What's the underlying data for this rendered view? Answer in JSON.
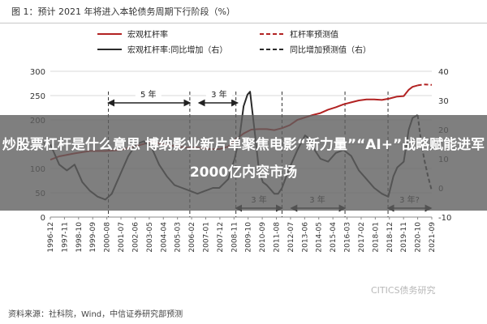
{
  "figure_title": "图 1：预计 2021 年将进入本轮债务周期下行阶段（%）",
  "source_note": "资料来源：社科院，Wind，中信证券研究部预测",
  "watermark": "CITICS债务研究",
  "overlay_title": "炒股票杠杆是什么意思 博纳影业新片单聚焦电影“新力量”“AI+”战略赋能进军2000亿内容市场",
  "colors": {
    "leverage": "#b22222",
    "yoy": "#2b2b2b",
    "grid": "#d9d9d9",
    "overlay": "#5f5f5f"
  },
  "chart_data": {
    "type": "line",
    "title": "图 1：预计 2021 年将进入本轮债务周期下行阶段（%）",
    "legend": [
      "宏观杠杆率",
      "杠杆率预测值",
      "宏观杠杆率:同比增加（右）",
      "同比增加预测值（右）"
    ],
    "legend_placement": "top",
    "grid": true,
    "y_left": {
      "ticks": [
        0,
        50,
        100,
        150,
        200,
        250,
        300
      ],
      "lim": [
        0,
        300
      ]
    },
    "y_right": {
      "ticks": [
        -10,
        0,
        10,
        20,
        30,
        40
      ],
      "lim": [
        -10,
        40
      ]
    },
    "x_tick_labels": [
      "1996-12",
      "1997-11",
      "1998-10",
      "1999-09",
      "2000-08",
      "2001-07",
      "2002-06",
      "2003-05",
      "2004-04",
      "2005-03",
      "2006-02",
      "2007-01",
      "2007-12",
      "2008-11",
      "2009-10",
      "2010-09",
      "2011-08",
      "2012-07",
      "2013-06",
      "2014-05",
      "2015-04",
      "2016-03",
      "2017-02",
      "2018-01",
      "2018-12",
      "2019-11",
      "2020-10",
      "2021-09"
    ],
    "annotations": [
      "5 年",
      "3 年",
      "3 年",
      "3 年",
      "3 年?"
    ],
    "series": [
      {
        "name": "宏观杠杆率",
        "axis": "left",
        "style": "solid",
        "points": [
          [
            1996.92,
            118
          ],
          [
            1997.5,
            125
          ],
          [
            1998.5,
            131
          ],
          [
            1999.5,
            136
          ],
          [
            2000.5,
            136
          ],
          [
            2001.5,
            138
          ],
          [
            2002.5,
            146
          ],
          [
            2003.5,
            155
          ],
          [
            2004.25,
            150
          ],
          [
            2005.0,
            146
          ],
          [
            2005.75,
            143
          ],
          [
            2006.5,
            143
          ],
          [
            2007.25,
            140
          ],
          [
            2007.92,
            140
          ],
          [
            2008.5,
            145
          ],
          [
            2009.0,
            160
          ],
          [
            2009.5,
            172
          ],
          [
            2010.0,
            180
          ],
          [
            2010.5,
            181
          ],
          [
            2011.0,
            181
          ],
          [
            2011.5,
            179
          ],
          [
            2012.0,
            183
          ],
          [
            2012.5,
            189
          ],
          [
            2013.0,
            200
          ],
          [
            2013.5,
            205
          ],
          [
            2014.0,
            210
          ],
          [
            2014.5,
            214
          ],
          [
            2015.0,
            221
          ],
          [
            2015.5,
            226
          ],
          [
            2016.0,
            232
          ],
          [
            2016.5,
            236
          ],
          [
            2017.0,
            240
          ],
          [
            2017.5,
            242
          ],
          [
            2018.0,
            242
          ],
          [
            2018.5,
            241
          ],
          [
            2019.0,
            244
          ],
          [
            2019.5,
            248
          ],
          [
            2019.92,
            249
          ],
          [
            2020.25,
            262
          ],
          [
            2020.5,
            268
          ],
          [
            2020.83,
            271
          ]
        ]
      },
      {
        "name": "杠杆率预测值",
        "axis": "left",
        "style": "dashed",
        "points": [
          [
            2020.83,
            271
          ],
          [
            2021.25,
            273
          ],
          [
            2021.75,
            272
          ]
        ]
      },
      {
        "name": "宏观杠杆率:同比增加（右）",
        "axis": "right",
        "style": "solid",
        "points": [
          [
            1996.92,
            15
          ],
          [
            1997.5,
            8
          ],
          [
            1998.0,
            6
          ],
          [
            1998.5,
            8
          ],
          [
            1999.0,
            2
          ],
          [
            1999.5,
            -1
          ],
          [
            2000.0,
            -3
          ],
          [
            2000.5,
            -4
          ],
          [
            2000.92,
            -2
          ],
          [
            2001.5,
            5
          ],
          [
            2002.0,
            11
          ],
          [
            2002.5,
            15
          ],
          [
            2003.0,
            16
          ],
          [
            2003.5,
            14
          ],
          [
            2004.0,
            8
          ],
          [
            2004.5,
            4
          ],
          [
            2005.0,
            1
          ],
          [
            2005.5,
            0
          ],
          [
            2006.0,
            -1
          ],
          [
            2006.5,
            -2
          ],
          [
            2007.0,
            -1
          ],
          [
            2007.5,
            0
          ],
          [
            2007.92,
            0
          ],
          [
            2008.5,
            3
          ],
          [
            2008.92,
            10
          ],
          [
            2009.25,
            18
          ],
          [
            2009.5,
            28
          ],
          [
            2009.75,
            32
          ],
          [
            2009.92,
            33
          ],
          [
            2010.25,
            18
          ],
          [
            2010.5,
            6
          ],
          [
            2010.75,
            2
          ],
          [
            2011.0,
            1
          ],
          [
            2011.5,
            -2
          ],
          [
            2011.75,
            -2
          ],
          [
            2012.0,
            0
          ],
          [
            2012.5,
            7
          ],
          [
            2013.0,
            13
          ],
          [
            2013.5,
            18
          ],
          [
            2013.75,
            17
          ],
          [
            2014.0,
            14
          ],
          [
            2014.5,
            10
          ],
          [
            2015.0,
            9
          ],
          [
            2015.5,
            12
          ],
          [
            2016.0,
            13
          ],
          [
            2016.5,
            11
          ],
          [
            2017.0,
            6
          ],
          [
            2017.5,
            3
          ],
          [
            2018.0,
            0
          ],
          [
            2018.5,
            -2
          ],
          [
            2018.92,
            -3
          ],
          [
            2019.25,
            4
          ],
          [
            2019.5,
            7
          ],
          [
            2019.92,
            9
          ],
          [
            2020.25,
            20
          ],
          [
            2020.5,
            24
          ],
          [
            2020.83,
            25
          ]
        ]
      },
      {
        "name": "同比增加预测值（右）",
        "axis": "right",
        "style": "dashed",
        "points": [
          [
            2020.83,
            25
          ],
          [
            2021.0,
            18
          ],
          [
            2021.25,
            10
          ],
          [
            2021.5,
            4
          ],
          [
            2021.75,
            -1
          ]
        ]
      }
    ]
  }
}
